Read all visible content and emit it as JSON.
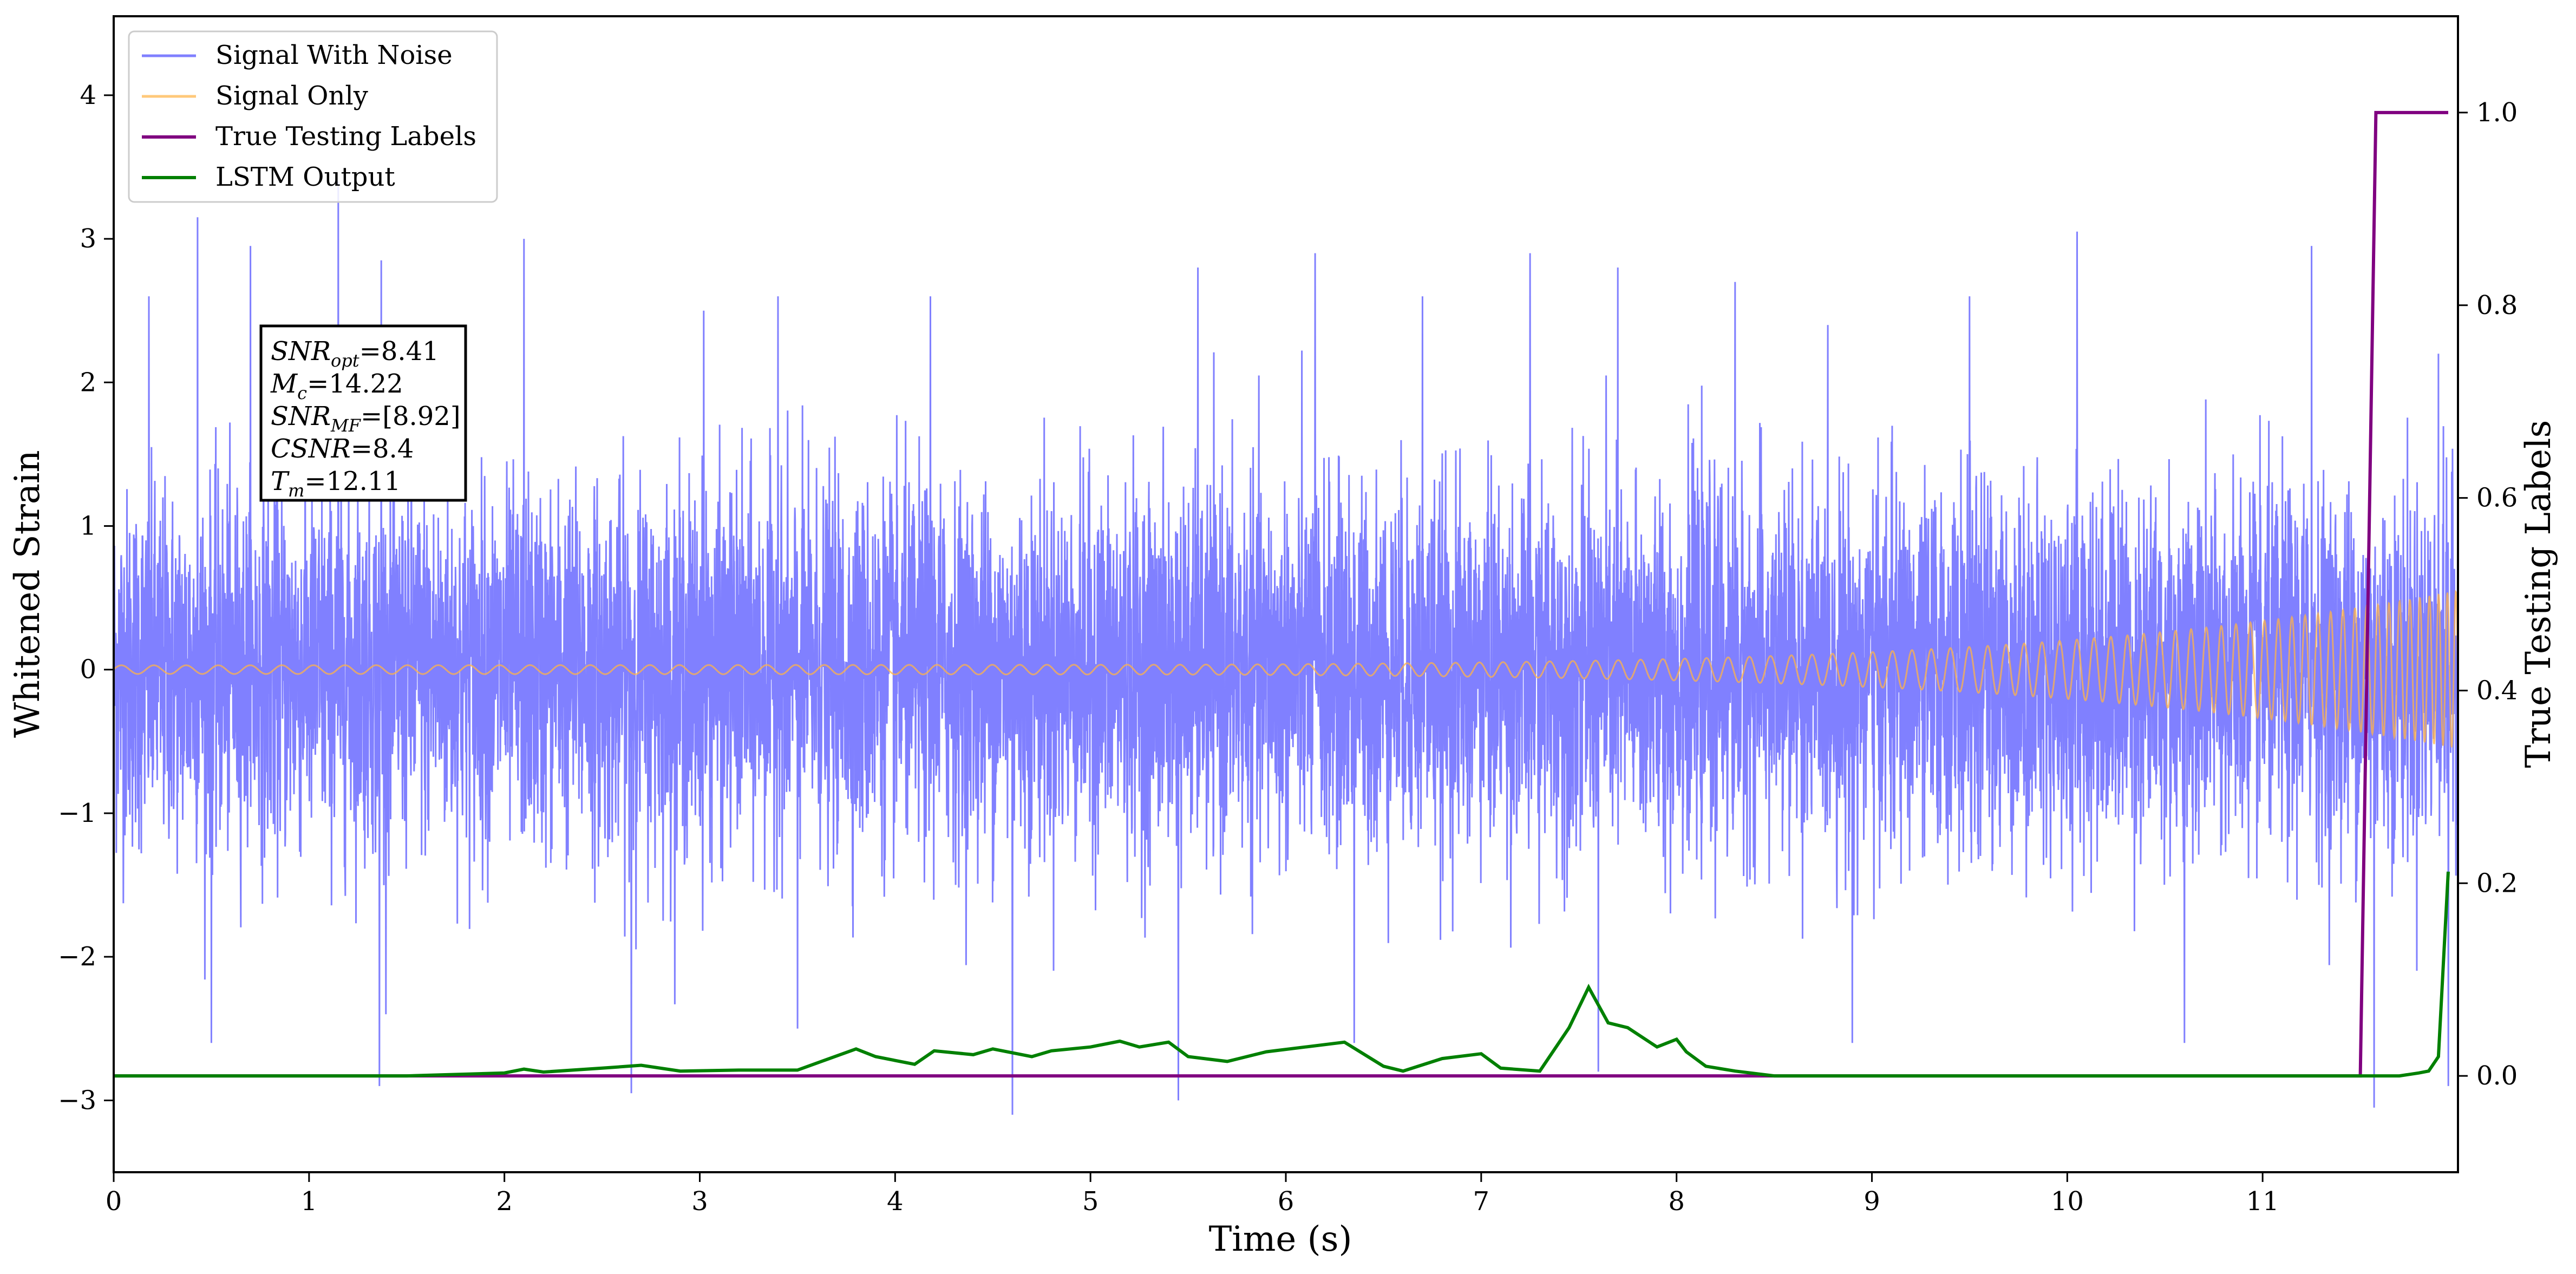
{
  "chart_data": {
    "type": "line",
    "xlabel": "Time (s)",
    "ylabel": "Whitened Strain",
    "y2label": "True Testing Labels",
    "xlim": [
      0,
      12.0
    ],
    "ylim": [
      -3.5,
      4.55
    ],
    "y2lim": [
      -0.1,
      1.1
    ],
    "x_ticks": [
      0,
      1,
      2,
      3,
      4,
      5,
      6,
      7,
      8,
      9,
      10,
      11
    ],
    "x_tick_labels": [
      "0",
      "1",
      "2",
      "3",
      "4",
      "5",
      "6",
      "7",
      "8",
      "9",
      "10",
      "11"
    ],
    "y_ticks": [
      -3,
      -2,
      -1,
      0,
      1,
      2,
      3,
      4
    ],
    "y_tick_labels": [
      "−3",
      "−2",
      "−1",
      "0",
      "1",
      "2",
      "3",
      "4"
    ],
    "y2_ticks": [
      0.0,
      0.2,
      0.4,
      0.6,
      0.8,
      1.0
    ],
    "y2_tick_labels": [
      "0.0",
      "0.2",
      "0.4",
      "0.6",
      "0.8",
      "1.0"
    ],
    "legend_position": "upper-left",
    "grid": false,
    "series": [
      {
        "name": "Signal With Noise",
        "axis": "left",
        "color": "#8080ff",
        "description_values": {
          "typical_band": [
            -1.0,
            1.0
          ],
          "peaks": [
            [
              0.18,
              2.6
            ],
            [
              0.43,
              3.15
            ],
            [
              0.7,
              2.95
            ],
            [
              1.15,
              3.4
            ],
            [
              1.37,
              2.85
            ],
            [
              2.1,
              3.0
            ],
            [
              2.65,
              2.4
            ],
            [
              3.02,
              2.5
            ],
            [
              3.4,
              2.6
            ],
            [
              4.18,
              2.6
            ],
            [
              4.6,
              3.2
            ],
            [
              5.55,
              2.8
            ],
            [
              6.15,
              2.9
            ],
            [
              6.7,
              2.6
            ],
            [
              7.25,
              2.9
            ],
            [
              7.7,
              2.8
            ],
            [
              8.3,
              2.7
            ],
            [
              9.5,
              2.6
            ],
            [
              10.05,
              3.05
            ],
            [
              10.6,
              2.9
            ],
            [
              11.25,
              2.95
            ],
            [
              11.9,
              2.2
            ]
          ],
          "troughs": [
            [
              0.5,
              -2.6
            ],
            [
              1.36,
              -2.9
            ],
            [
              2.65,
              -2.95
            ],
            [
              3.5,
              -2.5
            ],
            [
              4.6,
              -3.1
            ],
            [
              5.45,
              -3.0
            ],
            [
              6.35,
              -2.6
            ],
            [
              7.6,
              -2.8
            ],
            [
              8.9,
              -2.6
            ],
            [
              10.6,
              -2.6
            ],
            [
              11.57,
              -3.05
            ],
            [
              11.95,
              -2.9
            ]
          ]
        }
      },
      {
        "name": "Signal Only",
        "axis": "left",
        "color": "#ffb347",
        "description_values": {
          "amplitude_start": 0.03,
          "amplitude_end": 0.55,
          "frequency_start_hz": 6,
          "frequency_end_hz": 60
        }
      },
      {
        "name": "True Testing Labels",
        "axis": "right",
        "color": "#800080",
        "x": [
          0,
          11.5,
          11.58,
          11.95
        ],
        "y": [
          0.0,
          0.0,
          1.0,
          1.0
        ]
      },
      {
        "name": "LSTM Output",
        "axis": "right",
        "color": "#008000",
        "x": [
          0,
          1.5,
          2.0,
          2.1,
          2.2,
          2.5,
          2.7,
          2.9,
          3.2,
          3.5,
          3.8,
          3.9,
          4.1,
          4.2,
          4.4,
          4.5,
          4.7,
          4.8,
          5.0,
          5.15,
          5.25,
          5.4,
          5.5,
          5.7,
          5.9,
          6.1,
          6.3,
          6.5,
          6.6,
          6.8,
          7.0,
          7.1,
          7.3,
          7.45,
          7.55,
          7.65,
          7.75,
          7.9,
          8.0,
          8.05,
          8.15,
          8.3,
          8.5,
          8.8,
          9.2,
          10.0,
          11.0,
          11.6,
          11.7,
          11.8,
          11.85,
          11.9,
          11.95
        ],
        "y": [
          0.0,
          0.0,
          0.003,
          0.007,
          0.004,
          0.008,
          0.011,
          0.005,
          0.006,
          0.006,
          0.028,
          0.02,
          0.012,
          0.026,
          0.022,
          0.028,
          0.02,
          0.026,
          0.03,
          0.036,
          0.03,
          0.035,
          0.02,
          0.015,
          0.025,
          0.03,
          0.035,
          0.01,
          0.005,
          0.018,
          0.023,
          0.008,
          0.005,
          0.05,
          0.092,
          0.055,
          0.05,
          0.03,
          0.038,
          0.025,
          0.01,
          0.005,
          0.0,
          0.0,
          0.0,
          0.0,
          0.0,
          0.0,
          0.0,
          0.003,
          0.005,
          0.02,
          0.212
        ]
      }
    ],
    "annotation": {
      "lines": [
        {
          "main": "SNR",
          "sub": "opt",
          "rest": "=8.41"
        },
        {
          "main": "M",
          "sub": "c",
          "rest": "=14.22"
        },
        {
          "main": "SNR",
          "sub": "MF",
          "rest": "=[8.92]"
        },
        {
          "main": "CSNR",
          "sub": "",
          "rest": "=8.4"
        },
        {
          "main": "T",
          "sub": "m",
          "rest": "=12.11"
        }
      ]
    }
  }
}
